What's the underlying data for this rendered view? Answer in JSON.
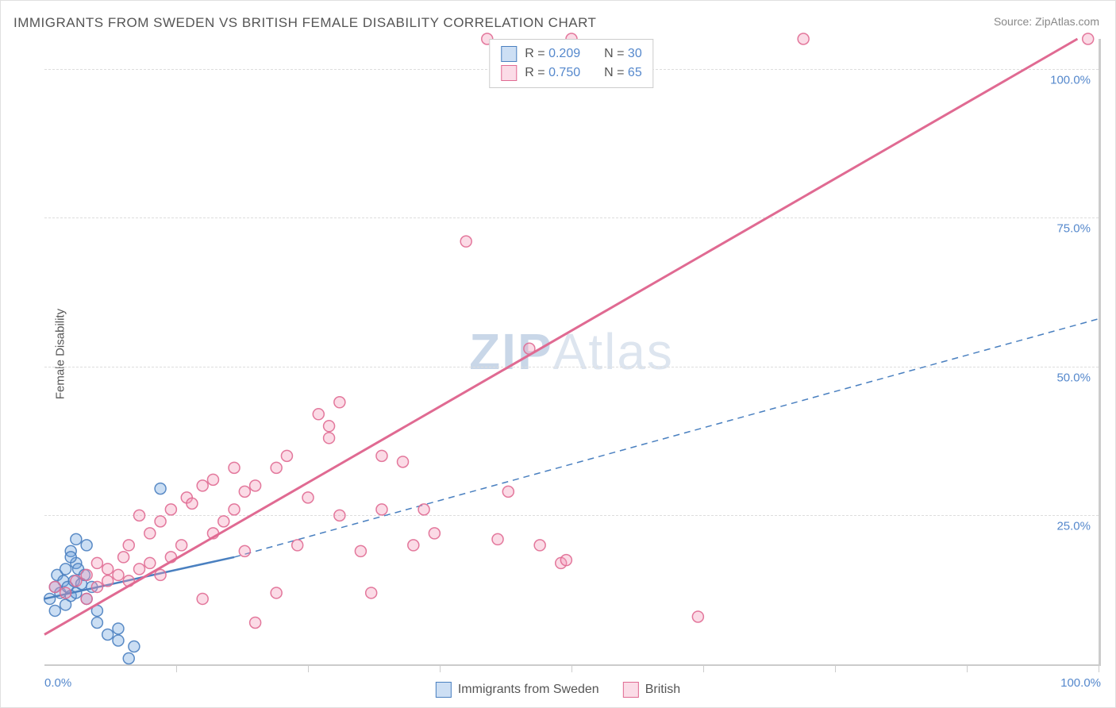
{
  "title": "IMMIGRANTS FROM SWEDEN VS BRITISH FEMALE DISABILITY CORRELATION CHART",
  "source": "Source: ZipAtlas.com",
  "watermark_prefix": "ZIP",
  "watermark_suffix": "Atlas",
  "ylabel": "Female Disability",
  "chart": {
    "type": "scatter",
    "background_color": "#ffffff",
    "grid_color": "#dddddd",
    "axis_color": "#cccccc",
    "tick_label_color": "#5588cc",
    "axis_label_color": "#555555",
    "title_color": "#555555",
    "title_fontsize": 17,
    "label_fontsize": 15,
    "tick_fontsize": 15,
    "xlim": [
      0,
      100
    ],
    "ylim": [
      0,
      105
    ],
    "xticks": [
      0,
      12.5,
      25,
      37.5,
      50,
      62.5,
      75,
      87.5,
      100
    ],
    "xtick_labels": {
      "0": "0.0%",
      "100": "100.0%"
    },
    "yticks": [
      25,
      50,
      75,
      100
    ],
    "ytick_labels": {
      "25": "25.0%",
      "50": "50.0%",
      "75": "75.0%",
      "100": "100.0%"
    },
    "marker_radius": 7,
    "marker_fill_opacity": 0.35,
    "marker_stroke_opacity": 0.9,
    "series": [
      {
        "name": "Immigrants from Sweden",
        "color": "#6aa0de",
        "stroke": "#4a80c0",
        "R": 0.209,
        "N": 30,
        "trendline": {
          "x1": 0,
          "y1": 11,
          "x2": 18,
          "y2": 18,
          "dash": "none",
          "width": 2.5
        },
        "trendline_extended": {
          "x1": 18,
          "y1": 18,
          "x2": 100,
          "y2": 58,
          "dash": "8,6",
          "width": 1.5
        },
        "points": [
          [
            0.5,
            11
          ],
          [
            1,
            9
          ],
          [
            1,
            13
          ],
          [
            1.2,
            15
          ],
          [
            1.5,
            12
          ],
          [
            1.8,
            14
          ],
          [
            2,
            10
          ],
          [
            2,
            16
          ],
          [
            2.2,
            13
          ],
          [
            2.5,
            11.5
          ],
          [
            2.5,
            19
          ],
          [
            2.8,
            14
          ],
          [
            3,
            12
          ],
          [
            3,
            17
          ],
          [
            3.2,
            16
          ],
          [
            3.5,
            13.5
          ],
          [
            3.8,
            15
          ],
          [
            4,
            11
          ],
          [
            4.5,
            13
          ],
          [
            5,
            9
          ],
          [
            5,
            7
          ],
          [
            6,
            5
          ],
          [
            7,
            4
          ],
          [
            7,
            6
          ],
          [
            8,
            1
          ],
          [
            8.5,
            3
          ],
          [
            3,
            21
          ],
          [
            4,
            20
          ],
          [
            11,
            29.5
          ],
          [
            2.5,
            18
          ]
        ]
      },
      {
        "name": "British",
        "color": "#f497b6",
        "stroke": "#e06a92",
        "R": 0.75,
        "N": 65,
        "trendline": {
          "x1": 0,
          "y1": 5,
          "x2": 98,
          "y2": 105,
          "dash": "none",
          "width": 3
        },
        "points": [
          [
            1,
            13
          ],
          [
            2,
            12
          ],
          [
            3,
            14
          ],
          [
            4,
            11
          ],
          [
            4,
            15
          ],
          [
            5,
            13
          ],
          [
            5,
            17
          ],
          [
            6,
            14
          ],
          [
            6,
            16
          ],
          [
            7,
            15
          ],
          [
            7.5,
            18
          ],
          [
            8,
            14
          ],
          [
            8,
            20
          ],
          [
            9,
            16
          ],
          [
            9,
            25
          ],
          [
            10,
            17
          ],
          [
            10,
            22
          ],
          [
            11,
            15
          ],
          [
            11,
            24
          ],
          [
            12,
            18
          ],
          [
            12,
            26
          ],
          [
            13,
            20
          ],
          [
            13.5,
            28
          ],
          [
            14,
            27
          ],
          [
            15,
            11
          ],
          [
            15,
            30
          ],
          [
            16,
            22
          ],
          [
            16,
            31
          ],
          [
            17,
            24
          ],
          [
            18,
            26
          ],
          [
            18,
            33
          ],
          [
            19,
            19
          ],
          [
            19,
            29
          ],
          [
            20,
            30
          ],
          [
            20,
            7
          ],
          [
            22,
            12
          ],
          [
            22,
            33
          ],
          [
            23,
            35
          ],
          [
            24,
            20
          ],
          [
            25,
            28
          ],
          [
            26,
            42
          ],
          [
            27,
            38
          ],
          [
            27,
            40
          ],
          [
            28,
            25
          ],
          [
            28,
            44
          ],
          [
            30,
            19
          ],
          [
            31,
            12
          ],
          [
            32,
            26
          ],
          [
            32,
            35
          ],
          [
            34,
            34
          ],
          [
            35,
            20
          ],
          [
            36,
            26
          ],
          [
            37,
            22
          ],
          [
            40,
            71
          ],
          [
            42,
            105
          ],
          [
            43,
            21
          ],
          [
            44,
            29
          ],
          [
            46,
            53
          ],
          [
            47,
            20
          ],
          [
            49,
            17
          ],
          [
            49.5,
            17.5
          ],
          [
            50,
            105
          ],
          [
            62,
            8
          ],
          [
            72,
            105
          ],
          [
            99,
            105
          ]
        ]
      }
    ]
  },
  "legend_stats_labels": {
    "R": "R =",
    "N": "N ="
  },
  "bottom_legend": [
    "Immigrants from Sweden",
    "British"
  ]
}
